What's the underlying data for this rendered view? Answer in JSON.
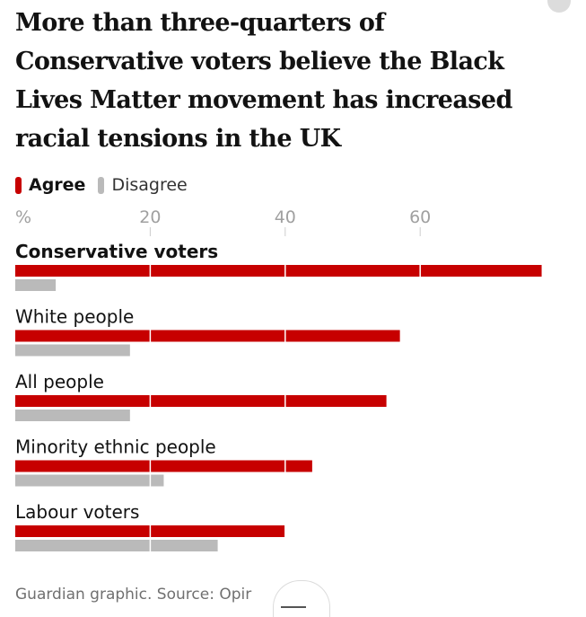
{
  "title": "More than three-quarters of Conservative voters believe the Black Lives Matter movement has increased racial tensions in the UK",
  "legend": {
    "agree": "Agree",
    "disagree": "Disagree"
  },
  "colors": {
    "agree": "#c70000",
    "disagree": "#bababa",
    "grid": "#ffffff",
    "tick_text": "#a0a0a0",
    "label_text": "#121212"
  },
  "footer": {
    "source": "Guardian graphic. Source: Opir"
  },
  "chart_data": {
    "type": "bar",
    "orientation": "horizontal",
    "axis_unit": "%",
    "xticks": [
      20,
      40,
      60
    ],
    "xlim": [
      0,
      80
    ],
    "categories": [
      "Conservative voters",
      "White people",
      "All people",
      "Minority ethnic people",
      "Labour voters"
    ],
    "series": [
      {
        "name": "Agree",
        "values": [
          78,
          57,
          55,
          44,
          40
        ]
      },
      {
        "name": "Disagree",
        "values": [
          6,
          17,
          17,
          22,
          30
        ]
      }
    ],
    "grid": true,
    "legend_position": "top-left"
  }
}
